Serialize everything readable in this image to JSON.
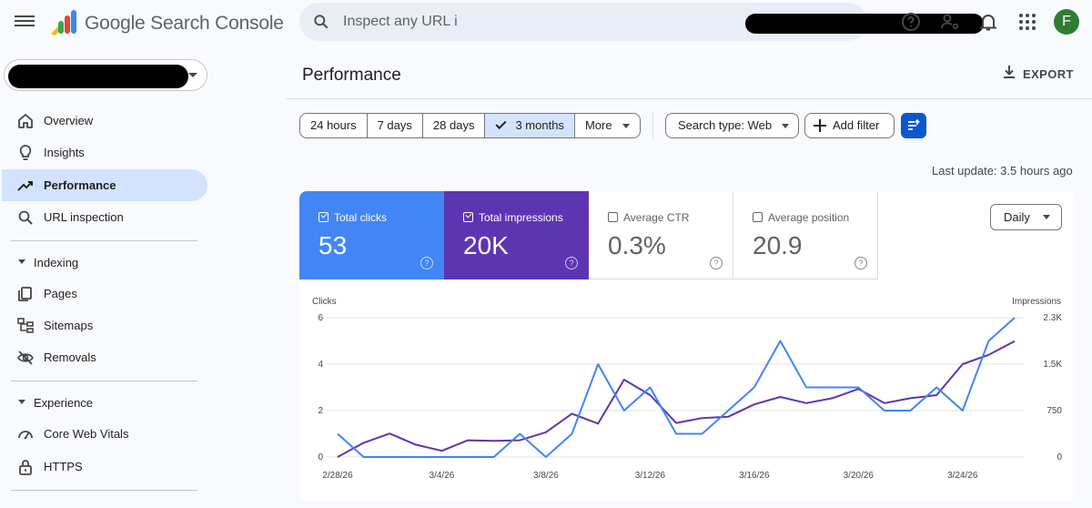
{
  "header": {
    "brand": "Google Search Console",
    "search_placeholder": "Inspect any URL i",
    "avatar_initial": "F"
  },
  "sidebar": {
    "items_top": [
      {
        "label": "Overview",
        "icon": "home-icon"
      },
      {
        "label": "Insights",
        "icon": "lightbulb-icon"
      },
      {
        "label": "Performance",
        "icon": "trending-up-icon",
        "active": true
      },
      {
        "label": "URL inspection",
        "icon": "search-icon"
      }
    ],
    "section_indexing": "Indexing",
    "items_indexing": [
      {
        "label": "Pages",
        "icon": "pages-icon"
      },
      {
        "label": "Sitemaps",
        "icon": "sitemap-icon"
      },
      {
        "label": "Removals",
        "icon": "eye-off-icon"
      }
    ],
    "section_experience": "Experience",
    "items_experience": [
      {
        "label": "Core Web Vitals",
        "icon": "speedometer-icon"
      },
      {
        "label": "HTTPS",
        "icon": "lock-icon"
      }
    ]
  },
  "main": {
    "title": "Performance",
    "export_label": "EXPORT",
    "date_ranges": [
      "24 hours",
      "7 days",
      "28 days",
      "3 months",
      "More"
    ],
    "selected_range": "3 months",
    "search_type": "Search type: Web",
    "add_filter": "Add filter",
    "last_update": "Last update: 3.5 hours ago",
    "granularity": "Daily"
  },
  "metrics": [
    {
      "label": "Total clicks",
      "value": "53",
      "checked": true,
      "color": "#4285f4"
    },
    {
      "label": "Total impressions",
      "value": "20K",
      "checked": true,
      "color": "#5e35b1"
    },
    {
      "label": "Average CTR",
      "value": "0.3%",
      "checked": false
    },
    {
      "label": "Average position",
      "value": "20.9",
      "checked": false
    }
  ],
  "chart_data": {
    "type": "line",
    "left_axis_label": "Clicks",
    "right_axis_label": "Impressions",
    "left_ticks": [
      "0",
      "2",
      "4",
      "6"
    ],
    "right_ticks": [
      "0",
      "750",
      "1.5K",
      "2.3K"
    ],
    "left_range": [
      0,
      6
    ],
    "right_range": [
      0,
      2250
    ],
    "x_tick_labels": [
      "2/28/26",
      "3/4/26",
      "3/8/26",
      "3/12/26",
      "3/16/26",
      "3/20/26",
      "3/24/26"
    ],
    "x": [
      "2/28/26",
      "3/1/26",
      "3/2/26",
      "3/3/26",
      "3/4/26",
      "3/5/26",
      "3/6/26",
      "3/7/26",
      "3/8/26",
      "3/9/26",
      "3/10/26",
      "3/11/26",
      "3/12/26",
      "3/13/26",
      "3/14/26",
      "3/15/26",
      "3/16/26",
      "3/17/26",
      "3/18/26",
      "3/19/26",
      "3/20/26",
      "3/21/26",
      "3/22/26",
      "3/23/26",
      "3/24/26",
      "3/25/26",
      "3/26/26"
    ],
    "series": [
      {
        "name": "Clicks",
        "axis": "left",
        "color": "#4285f4",
        "values": [
          1,
          0,
          0,
          0,
          0,
          0,
          0,
          1,
          0,
          1,
          4,
          2,
          3,
          1,
          1,
          2,
          3,
          5,
          3,
          3,
          3,
          2,
          2,
          3,
          2,
          5,
          6
        ]
      },
      {
        "name": "Impressions",
        "axis": "right",
        "color": "#5e35b1",
        "values": [
          0,
          230,
          380,
          200,
          100,
          270,
          260,
          270,
          400,
          700,
          540,
          1250,
          1000,
          550,
          630,
          650,
          850,
          970,
          870,
          950,
          1100,
          870,
          950,
          1000,
          1500,
          1650,
          1870
        ]
      }
    ],
    "grid": true
  }
}
